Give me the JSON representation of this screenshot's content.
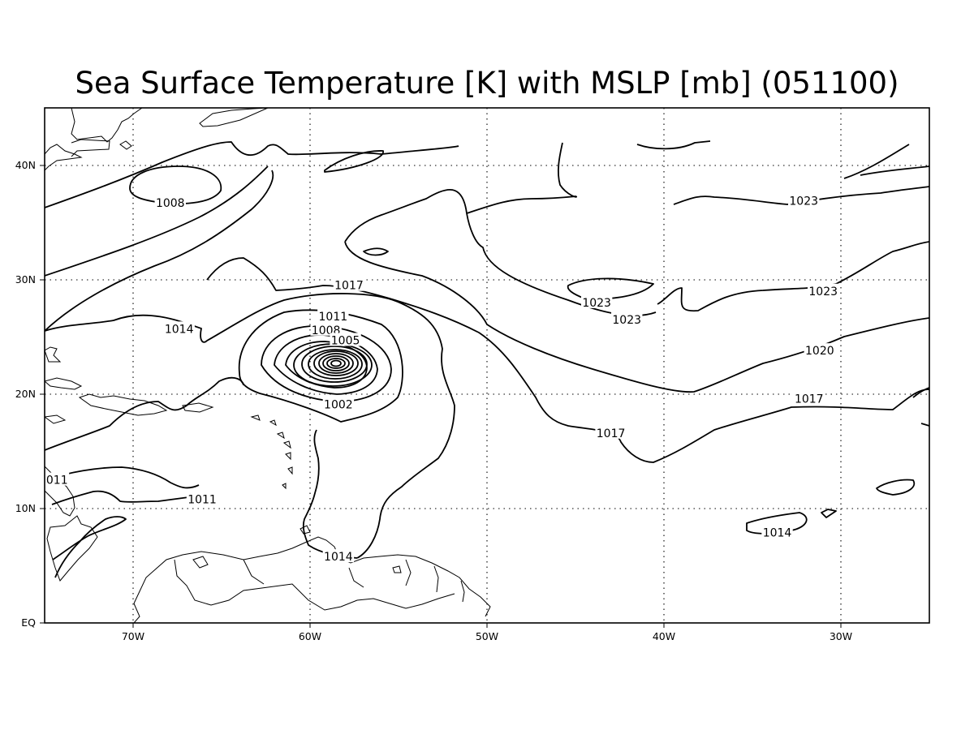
{
  "title": "Sea Surface Temperature [K] with MSLP [mb] (051100)",
  "x_tick_labels": [
    "70W",
    "60W",
    "50W",
    "40W",
    "30W"
  ],
  "y_tick_labels": [
    "EQ",
    "10N",
    "20N",
    "30N",
    "40N"
  ],
  "lon_range_deg_east": [
    -75,
    -25
  ],
  "lat_range_deg_north": [
    0,
    45
  ],
  "grid": "dotted",
  "contour_labels": [
    {
      "text": "1008",
      "lon": -67.9,
      "lat": 36.7
    },
    {
      "text": "1023",
      "lon": -32.1,
      "lat": 36.9
    },
    {
      "text": "1017",
      "lon": -57.8,
      "lat": 29.5
    },
    {
      "text": "1023",
      "lon": -43.8,
      "lat": 28.0
    },
    {
      "text": "1023",
      "lon": -42.1,
      "lat": 26.5
    },
    {
      "text": "1023",
      "lon": -31.0,
      "lat": 29.0
    },
    {
      "text": "1014",
      "lon": -67.4,
      "lat": 25.7
    },
    {
      "text": "1011",
      "lon": -58.7,
      "lat": 26.8
    },
    {
      "text": "1008",
      "lon": -59.1,
      "lat": 25.6
    },
    {
      "text": "1005",
      "lon": -58.0,
      "lat": 24.7
    },
    {
      "text": "1002",
      "lon": -58.4,
      "lat": 19.1
    },
    {
      "text": "1020",
      "lon": -31.2,
      "lat": 23.8
    },
    {
      "text": "1017",
      "lon": -31.8,
      "lat": 19.6
    },
    {
      "text": "1017",
      "lon": -43.0,
      "lat": 16.6
    },
    {
      "text": "011",
      "lon": -74.3,
      "lat": 12.5
    },
    {
      "text": "1011",
      "lon": -66.1,
      "lat": 10.8
    },
    {
      "text": "1014",
      "lon": -58.4,
      "lat": 5.8
    },
    {
      "text": "1014",
      "lon": -33.6,
      "lat": 7.9
    }
  ]
}
